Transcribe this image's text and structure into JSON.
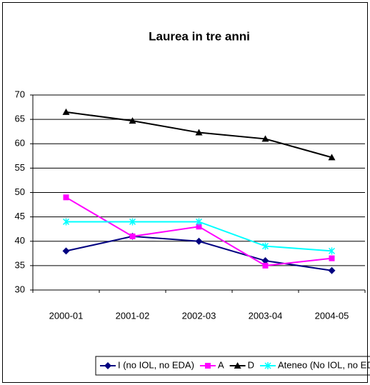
{
  "chart_data": {
    "type": "line",
    "title": "Laurea in tre anni",
    "categories": [
      "2000-01",
      "2001-02",
      "2002-03",
      "2003-04",
      "2004-05"
    ],
    "series": [
      {
        "name": "I (no IOL, no EDA)",
        "color": "#000080",
        "marker": "diamond",
        "values": [
          38,
          41,
          40,
          36,
          34
        ]
      },
      {
        "name": "A",
        "color": "#ff00ff",
        "marker": "square",
        "values": [
          49,
          41,
          43,
          35,
          36.5
        ]
      },
      {
        "name": "D",
        "color": "#000000",
        "marker": "triangle",
        "values": [
          66.5,
          64.7,
          62.3,
          61,
          57.2
        ]
      },
      {
        "name": "Ateneo (No IOL, no EDA)",
        "color": "#00ffff",
        "marker": "star",
        "values": [
          44,
          44,
          44,
          39,
          38
        ]
      }
    ],
    "ylim": [
      30,
      70
    ],
    "yticks": [
      30,
      35,
      40,
      45,
      50,
      55,
      60,
      65,
      70
    ],
    "grid": true,
    "legend": "bottom"
  }
}
